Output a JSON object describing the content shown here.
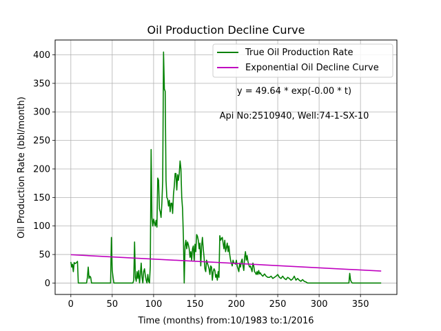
{
  "chart_data": {
    "type": "line",
    "title": "Oil Production Decline Curve",
    "xlabel": "Time (months) from:10/1983 to:1/2016",
    "ylabel": "Oil Production Rate (bbl/month)",
    "xlim": [
      -19,
      394
    ],
    "ylim": [
      -20,
      426
    ],
    "xticks": [
      0,
      50,
      100,
      150,
      200,
      250,
      300,
      350
    ],
    "yticks": [
      0,
      50,
      100,
      150,
      200,
      250,
      300,
      350,
      400
    ],
    "grid": true,
    "legend_position": "upper right",
    "annotations": [
      "y = 49.64 * exp(-0.00 * t)",
      "Api No:2510940, Well:74-1-SX-10"
    ],
    "series": [
      {
        "name": "True Oil Production Rate",
        "color": "#008000",
        "style": "solid",
        "x": [
          0,
          1,
          2,
          3,
          4,
          5,
          6,
          7,
          8,
          9,
          15,
          19,
          20,
          21,
          22,
          23,
          24,
          25,
          26,
          45,
          48,
          49,
          50,
          51,
          52,
          53,
          75,
          76,
          77,
          78,
          79,
          80,
          81,
          82,
          83,
          84,
          85,
          86,
          87,
          88,
          89,
          90,
          91,
          92,
          93,
          94,
          95,
          96,
          97,
          98,
          99,
          100,
          101,
          102,
          103,
          104,
          105,
          106,
          107,
          108,
          109,
          110,
          111,
          112,
          113,
          114,
          115,
          116,
          117,
          118,
          119,
          120,
          121,
          122,
          123,
          124,
          125,
          126,
          127,
          128,
          129,
          130,
          131,
          132,
          133,
          134,
          135,
          136,
          137,
          138,
          139,
          140,
          141,
          142,
          143,
          144,
          145,
          146,
          147,
          148,
          149,
          150,
          151,
          152,
          153,
          154,
          155,
          156,
          157,
          158,
          159,
          160,
          161,
          162,
          163,
          164,
          165,
          166,
          167,
          168,
          169,
          170,
          171,
          172,
          173,
          174,
          175,
          176,
          177,
          178,
          179,
          180,
          181,
          182,
          183,
          184,
          185,
          186,
          187,
          188,
          189,
          190,
          191,
          192,
          193,
          194,
          195,
          196,
          197,
          198,
          199,
          200,
          201,
          202,
          203,
          204,
          205,
          206,
          207,
          208,
          209,
          210,
          211,
          212,
          213,
          214,
          215,
          216,
          217,
          218,
          219,
          220,
          221,
          222,
          223,
          224,
          225,
          226,
          227,
          228,
          229,
          230,
          232,
          234,
          236,
          238,
          240,
          242,
          244,
          246,
          248,
          250,
          252,
          254,
          256,
          258,
          260,
          262,
          264,
          266,
          268,
          270,
          272,
          274,
          276,
          278,
          280,
          282,
          284,
          286,
          288,
          290,
          292,
          294,
          296,
          298,
          300,
          302,
          304,
          306,
          310,
          320,
          330,
          335,
          336,
          337,
          338,
          339,
          340,
          345,
          350,
          360,
          370,
          375
        ],
        "y": [
          37,
          28,
          33,
          20,
          36,
          34,
          35,
          36,
          38,
          0,
          0,
          0,
          10,
          28,
          8,
          12,
          10,
          0,
          0,
          0,
          0,
          80,
          22,
          10,
          0,
          0,
          0,
          5,
          72,
          10,
          3,
          20,
          8,
          22,
          0,
          15,
          35,
          10,
          0,
          20,
          25,
          13,
          5,
          0,
          15,
          3,
          0,
          30,
          234,
          115,
          100,
          112,
          106,
          100,
          110,
          98,
          184,
          180,
          130,
          125,
          115,
          140,
          180,
          405,
          340,
          336,
          180,
          150,
          147,
          135,
          145,
          125,
          140,
          140,
          122,
          155,
          170,
          192,
          192,
          163,
          190,
          180,
          192,
          214,
          200,
          150,
          130,
          80,
          0,
          65,
          75,
          60,
          72,
          67,
          60,
          45,
          55,
          40,
          60,
          65,
          40,
          68,
          55,
          85,
          82,
          75,
          60,
          70,
          30,
          65,
          80,
          60,
          45,
          25,
          20,
          40,
          35,
          30,
          25,
          15,
          30,
          28,
          5,
          20,
          25,
          22,
          10,
          15,
          5,
          20,
          10,
          83,
          75,
          78,
          80,
          70,
          60,
          75,
          55,
          62,
          70,
          55,
          65,
          50,
          40,
          35,
          30,
          40,
          35,
          35,
          33,
          40,
          30,
          25,
          20,
          35,
          28,
          38,
          42,
          30,
          22,
          45,
          55,
          40,
          48,
          38,
          32,
          28,
          30,
          25,
          20,
          35,
          30,
          20,
          18,
          15,
          20,
          15,
          22,
          16,
          18,
          15,
          12,
          16,
          12,
          10,
          10,
          12,
          8,
          10,
          12,
          15,
          10,
          8,
          12,
          8,
          6,
          10,
          8,
          5,
          7,
          12,
          5,
          8,
          5,
          3,
          6,
          3,
          2,
          0,
          0,
          0,
          0,
          0,
          0,
          0,
          0,
          0,
          0,
          0,
          0,
          0,
          0,
          0,
          0,
          17,
          5,
          2,
          0,
          0,
          0,
          0,
          0,
          0
        ]
      },
      {
        "name": "Exponential Oil Decline Curve",
        "color": "#bf00bf",
        "style": "solid",
        "x": [
          0,
          375
        ],
        "y": [
          49.64,
          20.99
        ]
      }
    ]
  }
}
